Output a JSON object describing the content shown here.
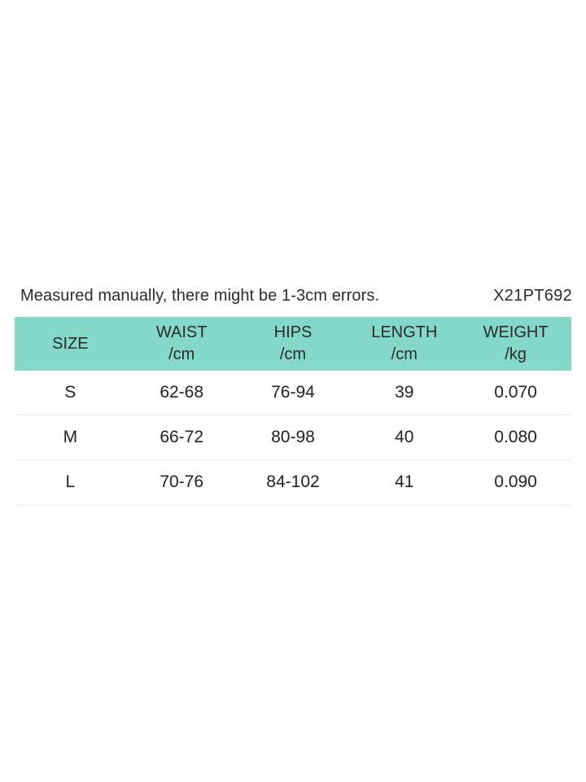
{
  "page": {
    "note": "Measured manually, there might be 1-3cm errors.",
    "product_code": "X21PT692"
  },
  "size_chart": {
    "columns": [
      {
        "label": "SIZE",
        "unit": ""
      },
      {
        "label": "WAIST",
        "unit": "/cm"
      },
      {
        "label": "HIPS",
        "unit": "/cm"
      },
      {
        "label": "LENGTH",
        "unit": "/cm"
      },
      {
        "label": "WEIGHT",
        "unit": "/kg"
      }
    ],
    "rows": [
      [
        "S",
        "62-68",
        "76-94",
        "39",
        "0.070"
      ],
      [
        "M",
        "66-72",
        "80-98",
        "40",
        "0.080"
      ],
      [
        "L",
        "70-76",
        "84-102",
        "41",
        "0.090"
      ]
    ],
    "colors": {
      "header_bg": "#84d8ca",
      "row_divider": "#f4f4f4",
      "text": "#2b2b2b"
    }
  }
}
